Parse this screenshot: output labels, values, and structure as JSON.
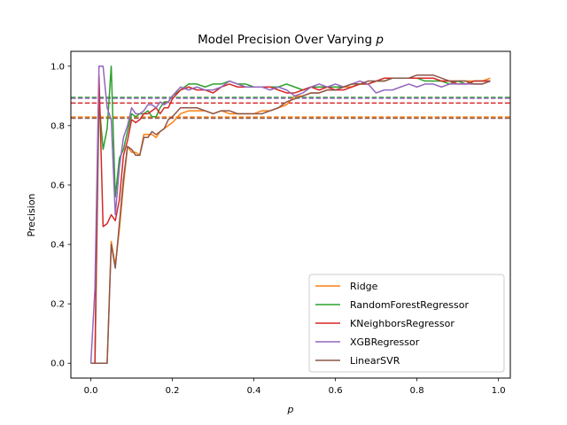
{
  "chart_data": {
    "type": "line",
    "title": "Model Precision Over Varying",
    "title_var": "p",
    "xlabel": "p",
    "ylabel": "Precision",
    "xlim": [
      -0.049,
      1.029
    ],
    "ylim": [
      -0.05,
      1.05
    ],
    "xticks": [
      0.0,
      0.2,
      0.4,
      0.6,
      0.8,
      1.0
    ],
    "yticks": [
      0.0,
      0.2,
      0.4,
      0.6,
      0.8,
      1.0
    ],
    "grid": false,
    "legend_position": "lower-right",
    "series": [
      {
        "name": "Ridge",
        "color": "#ff7f0e",
        "baseline": 0.829,
        "points": [
          [
            0.0,
            0.0
          ],
          [
            0.01,
            0.0
          ],
          [
            0.02,
            0.0
          ],
          [
            0.03,
            0.0
          ],
          [
            0.04,
            0.0
          ],
          [
            0.05,
            0.41
          ],
          [
            0.06,
            0.33
          ],
          [
            0.07,
            0.45
          ],
          [
            0.08,
            0.6
          ],
          [
            0.09,
            0.73
          ],
          [
            0.1,
            0.71
          ],
          [
            0.11,
            0.71
          ],
          [
            0.12,
            0.7
          ],
          [
            0.13,
            0.77
          ],
          [
            0.14,
            0.77
          ],
          [
            0.15,
            0.77
          ],
          [
            0.16,
            0.76
          ],
          [
            0.17,
            0.78
          ],
          [
            0.18,
            0.79
          ],
          [
            0.19,
            0.8
          ],
          [
            0.2,
            0.81
          ],
          [
            0.22,
            0.84
          ],
          [
            0.24,
            0.85
          ],
          [
            0.26,
            0.85
          ],
          [
            0.28,
            0.85
          ],
          [
            0.3,
            0.84
          ],
          [
            0.32,
            0.85
          ],
          [
            0.34,
            0.84
          ],
          [
            0.36,
            0.84
          ],
          [
            0.38,
            0.84
          ],
          [
            0.4,
            0.84
          ],
          [
            0.42,
            0.85
          ],
          [
            0.44,
            0.85
          ],
          [
            0.46,
            0.86
          ],
          [
            0.48,
            0.87
          ],
          [
            0.5,
            0.9
          ],
          [
            0.52,
            0.9
          ],
          [
            0.54,
            0.91
          ],
          [
            0.56,
            0.91
          ],
          [
            0.58,
            0.92
          ],
          [
            0.6,
            0.92
          ],
          [
            0.62,
            0.93
          ],
          [
            0.64,
            0.93
          ],
          [
            0.66,
            0.94
          ],
          [
            0.68,
            0.94
          ],
          [
            0.7,
            0.95
          ],
          [
            0.72,
            0.95
          ],
          [
            0.74,
            0.96
          ],
          [
            0.76,
            0.96
          ],
          [
            0.78,
            0.96
          ],
          [
            0.8,
            0.96
          ],
          [
            0.82,
            0.96
          ],
          [
            0.84,
            0.96
          ],
          [
            0.86,
            0.95
          ],
          [
            0.88,
            0.95
          ],
          [
            0.9,
            0.95
          ],
          [
            0.92,
            0.95
          ],
          [
            0.94,
            0.95
          ],
          [
            0.96,
            0.95
          ],
          [
            0.98,
            0.96
          ]
        ]
      },
      {
        "name": "RandomForestRegressor",
        "color": "#2ca02c",
        "baseline": 0.895,
        "points": [
          [
            0.0,
            0.0
          ],
          [
            0.01,
            0.0
          ],
          [
            0.02,
            0.88
          ],
          [
            0.03,
            0.72
          ],
          [
            0.04,
            0.79
          ],
          [
            0.05,
            1.0
          ],
          [
            0.06,
            0.56
          ],
          [
            0.07,
            0.69
          ],
          [
            0.08,
            0.72
          ],
          [
            0.09,
            0.78
          ],
          [
            0.1,
            0.84
          ],
          [
            0.11,
            0.83
          ],
          [
            0.12,
            0.84
          ],
          [
            0.13,
            0.84
          ],
          [
            0.14,
            0.85
          ],
          [
            0.15,
            0.83
          ],
          [
            0.16,
            0.83
          ],
          [
            0.17,
            0.86
          ],
          [
            0.18,
            0.88
          ],
          [
            0.19,
            0.88
          ],
          [
            0.2,
            0.9
          ],
          [
            0.22,
            0.92
          ],
          [
            0.24,
            0.94
          ],
          [
            0.26,
            0.94
          ],
          [
            0.28,
            0.93
          ],
          [
            0.3,
            0.94
          ],
          [
            0.32,
            0.94
          ],
          [
            0.34,
            0.95
          ],
          [
            0.36,
            0.94
          ],
          [
            0.38,
            0.94
          ],
          [
            0.4,
            0.93
          ],
          [
            0.42,
            0.93
          ],
          [
            0.44,
            0.93
          ],
          [
            0.46,
            0.93
          ],
          [
            0.48,
            0.94
          ],
          [
            0.5,
            0.93
          ],
          [
            0.52,
            0.92
          ],
          [
            0.54,
            0.93
          ],
          [
            0.56,
            0.93
          ],
          [
            0.58,
            0.93
          ],
          [
            0.6,
            0.93
          ],
          [
            0.62,
            0.93
          ],
          [
            0.64,
            0.94
          ],
          [
            0.66,
            0.94
          ],
          [
            0.68,
            0.94
          ],
          [
            0.7,
            0.95
          ],
          [
            0.72,
            0.95
          ],
          [
            0.74,
            0.96
          ],
          [
            0.76,
            0.96
          ],
          [
            0.78,
            0.96
          ],
          [
            0.8,
            0.96
          ],
          [
            0.82,
            0.95
          ],
          [
            0.84,
            0.95
          ],
          [
            0.86,
            0.95
          ],
          [
            0.88,
            0.94
          ],
          [
            0.9,
            0.95
          ],
          [
            0.92,
            0.94
          ],
          [
            0.94,
            0.95
          ],
          [
            0.96,
            0.95
          ],
          [
            0.98,
            0.95
          ]
        ]
      },
      {
        "name": "KNeighborsRegressor",
        "color": "#d62728",
        "baseline": 0.876,
        "points": [
          [
            0.0,
            0.0
          ],
          [
            0.01,
            0.0
          ],
          [
            0.02,
            0.97
          ],
          [
            0.03,
            0.46
          ],
          [
            0.04,
            0.47
          ],
          [
            0.05,
            0.5
          ],
          [
            0.06,
            0.48
          ],
          [
            0.07,
            0.55
          ],
          [
            0.08,
            0.7
          ],
          [
            0.09,
            0.75
          ],
          [
            0.1,
            0.82
          ],
          [
            0.11,
            0.81
          ],
          [
            0.12,
            0.82
          ],
          [
            0.13,
            0.84
          ],
          [
            0.14,
            0.84
          ],
          [
            0.15,
            0.85
          ],
          [
            0.16,
            0.86
          ],
          [
            0.17,
            0.84
          ],
          [
            0.18,
            0.86
          ],
          [
            0.19,
            0.86
          ],
          [
            0.2,
            0.89
          ],
          [
            0.22,
            0.92
          ],
          [
            0.24,
            0.93
          ],
          [
            0.26,
            0.92
          ],
          [
            0.28,
            0.92
          ],
          [
            0.3,
            0.91
          ],
          [
            0.32,
            0.93
          ],
          [
            0.34,
            0.94
          ],
          [
            0.36,
            0.93
          ],
          [
            0.38,
            0.93
          ],
          [
            0.4,
            0.93
          ],
          [
            0.42,
            0.93
          ],
          [
            0.44,
            0.93
          ],
          [
            0.46,
            0.92
          ],
          [
            0.48,
            0.91
          ],
          [
            0.5,
            0.91
          ],
          [
            0.52,
            0.92
          ],
          [
            0.54,
            0.93
          ],
          [
            0.56,
            0.92
          ],
          [
            0.58,
            0.93
          ],
          [
            0.6,
            0.92
          ],
          [
            0.62,
            0.92
          ],
          [
            0.64,
            0.93
          ],
          [
            0.66,
            0.94
          ],
          [
            0.68,
            0.94
          ],
          [
            0.7,
            0.95
          ],
          [
            0.72,
            0.96
          ],
          [
            0.74,
            0.96
          ],
          [
            0.76,
            0.96
          ],
          [
            0.78,
            0.96
          ],
          [
            0.8,
            0.96
          ],
          [
            0.82,
            0.96
          ],
          [
            0.84,
            0.96
          ],
          [
            0.86,
            0.95
          ],
          [
            0.88,
            0.95
          ],
          [
            0.9,
            0.94
          ],
          [
            0.92,
            0.94
          ],
          [
            0.94,
            0.95
          ],
          [
            0.96,
            0.95
          ],
          [
            0.98,
            0.95
          ]
        ]
      },
      {
        "name": "XGBRegressor",
        "color": "#9467bd",
        "baseline": 0.892,
        "points": [
          [
            0.0,
            0.0
          ],
          [
            0.01,
            0.25
          ],
          [
            0.02,
            1.0
          ],
          [
            0.03,
            1.0
          ],
          [
            0.04,
            0.86
          ],
          [
            0.05,
            0.82
          ],
          [
            0.06,
            0.5
          ],
          [
            0.07,
            0.66
          ],
          [
            0.08,
            0.76
          ],
          [
            0.09,
            0.8
          ],
          [
            0.1,
            0.86
          ],
          [
            0.11,
            0.84
          ],
          [
            0.12,
            0.84
          ],
          [
            0.13,
            0.85
          ],
          [
            0.14,
            0.87
          ],
          [
            0.15,
            0.87
          ],
          [
            0.16,
            0.86
          ],
          [
            0.17,
            0.88
          ],
          [
            0.18,
            0.87
          ],
          [
            0.19,
            0.88
          ],
          [
            0.2,
            0.9
          ],
          [
            0.22,
            0.93
          ],
          [
            0.24,
            0.92
          ],
          [
            0.26,
            0.93
          ],
          [
            0.28,
            0.92
          ],
          [
            0.3,
            0.92
          ],
          [
            0.32,
            0.93
          ],
          [
            0.34,
            0.95
          ],
          [
            0.36,
            0.94
          ],
          [
            0.38,
            0.93
          ],
          [
            0.4,
            0.93
          ],
          [
            0.42,
            0.93
          ],
          [
            0.44,
            0.92
          ],
          [
            0.46,
            0.93
          ],
          [
            0.48,
            0.92
          ],
          [
            0.5,
            0.9
          ],
          [
            0.52,
            0.91
          ],
          [
            0.54,
            0.93
          ],
          [
            0.56,
            0.94
          ],
          [
            0.58,
            0.93
          ],
          [
            0.6,
            0.94
          ],
          [
            0.62,
            0.93
          ],
          [
            0.64,
            0.94
          ],
          [
            0.66,
            0.95
          ],
          [
            0.68,
            0.94
          ],
          [
            0.7,
            0.91
          ],
          [
            0.72,
            0.92
          ],
          [
            0.74,
            0.92
          ],
          [
            0.76,
            0.93
          ],
          [
            0.78,
            0.94
          ],
          [
            0.8,
            0.93
          ],
          [
            0.82,
            0.94
          ],
          [
            0.84,
            0.94
          ],
          [
            0.86,
            0.93
          ],
          [
            0.88,
            0.94
          ],
          [
            0.9,
            0.94
          ],
          [
            0.92,
            0.94
          ],
          [
            0.94,
            0.94
          ],
          [
            0.96,
            0.94
          ],
          [
            0.98,
            0.95
          ]
        ]
      },
      {
        "name": "LinearSVR",
        "color": "#8c564b",
        "baseline": 0.825,
        "points": [
          [
            0.0,
            0.0
          ],
          [
            0.01,
            0.0
          ],
          [
            0.02,
            0.0
          ],
          [
            0.03,
            0.0
          ],
          [
            0.04,
            0.0
          ],
          [
            0.05,
            0.4
          ],
          [
            0.06,
            0.32
          ],
          [
            0.07,
            0.47
          ],
          [
            0.08,
            0.62
          ],
          [
            0.09,
            0.73
          ],
          [
            0.1,
            0.72
          ],
          [
            0.11,
            0.7
          ],
          [
            0.12,
            0.7
          ],
          [
            0.13,
            0.76
          ],
          [
            0.14,
            0.76
          ],
          [
            0.15,
            0.78
          ],
          [
            0.16,
            0.77
          ],
          [
            0.17,
            0.78
          ],
          [
            0.18,
            0.79
          ],
          [
            0.19,
            0.82
          ],
          [
            0.2,
            0.83
          ],
          [
            0.22,
            0.86
          ],
          [
            0.24,
            0.86
          ],
          [
            0.26,
            0.86
          ],
          [
            0.28,
            0.85
          ],
          [
            0.3,
            0.84
          ],
          [
            0.32,
            0.85
          ],
          [
            0.34,
            0.85
          ],
          [
            0.36,
            0.84
          ],
          [
            0.38,
            0.84
          ],
          [
            0.4,
            0.84
          ],
          [
            0.42,
            0.84
          ],
          [
            0.44,
            0.85
          ],
          [
            0.46,
            0.86
          ],
          [
            0.48,
            0.88
          ],
          [
            0.5,
            0.89
          ],
          [
            0.52,
            0.9
          ],
          [
            0.54,
            0.91
          ],
          [
            0.56,
            0.91
          ],
          [
            0.58,
            0.92
          ],
          [
            0.6,
            0.92
          ],
          [
            0.62,
            0.93
          ],
          [
            0.64,
            0.94
          ],
          [
            0.66,
            0.94
          ],
          [
            0.68,
            0.95
          ],
          [
            0.7,
            0.95
          ],
          [
            0.72,
            0.95
          ],
          [
            0.74,
            0.96
          ],
          [
            0.76,
            0.96
          ],
          [
            0.78,
            0.96
          ],
          [
            0.8,
            0.97
          ],
          [
            0.82,
            0.97
          ],
          [
            0.84,
            0.97
          ],
          [
            0.86,
            0.96
          ],
          [
            0.88,
            0.95
          ],
          [
            0.9,
            0.95
          ],
          [
            0.92,
            0.95
          ],
          [
            0.94,
            0.94
          ],
          [
            0.96,
            0.94
          ],
          [
            0.98,
            0.95
          ]
        ]
      }
    ]
  }
}
